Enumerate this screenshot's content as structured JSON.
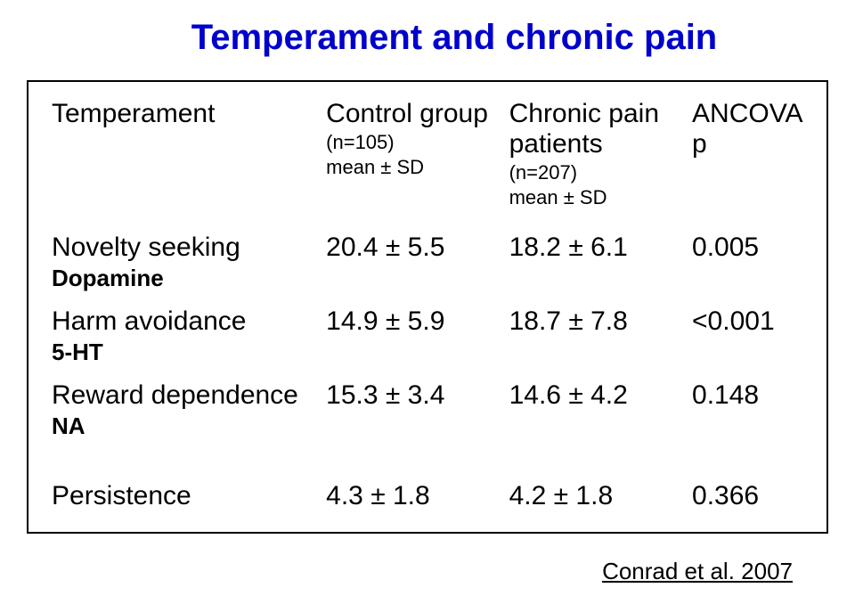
{
  "title": "Temperament and chronic pain",
  "headers": {
    "col0": "Temperament",
    "col1_main": "Control group",
    "col1_sub1": "(n=105)",
    "col1_sub2": "mean ± SD",
    "col2_main": "Chronic pain",
    "col2_main2": "patients",
    "col2_sub1": "(n=207)",
    "col2_sub2": "mean ± SD",
    "col3_main": "ANCOVA",
    "col3_sub": "p"
  },
  "rows": [
    {
      "label": "Novelty seeking",
      "sublabel": "Dopamine",
      "control": "20.4 ± 5.5",
      "patients": "18.2 ± 6.1",
      "p": "0.005"
    },
    {
      "label": "Harm avoidance",
      "sublabel": "5-HT",
      "control": "14.9 ± 5.9",
      "patients": "18.7 ± 7.8",
      "p": "<0.001"
    },
    {
      "label": "Reward dependence",
      "sublabel": "NA",
      "control": "15.3 ± 3.4",
      "patients": "14.6 ± 4.2",
      "p": "0.148"
    }
  ],
  "lastRow": {
    "label": "Persistence",
    "control": "4.3 ± 1.8",
    "patients": "4.2 ± 1.8",
    "p": "0.366"
  },
  "citation": "Conrad et al. 2007",
  "colors": {
    "title": "#0000cc",
    "border": "#000000",
    "text": "#000000",
    "background": "#ffffff"
  },
  "fontsize": {
    "title": 40,
    "body": 30,
    "sub": 22,
    "boldsub": 26,
    "citation": 26
  }
}
